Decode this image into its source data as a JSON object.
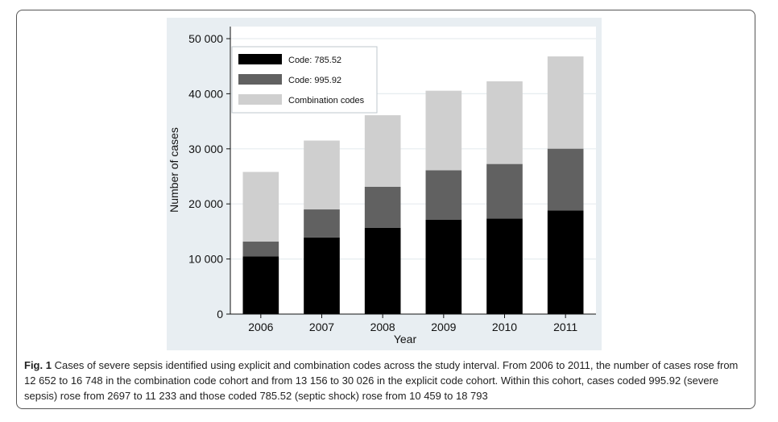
{
  "chart_data": {
    "type": "bar",
    "stacked": true,
    "title": "",
    "xlabel": "Year",
    "ylabel": "Number of cases",
    "ylim": [
      0,
      50000
    ],
    "yticks": [
      0,
      10000,
      20000,
      30000,
      40000,
      50000
    ],
    "ytick_labels": [
      "0",
      "10 000",
      "20 000",
      "30 000",
      "40 000",
      "50 000"
    ],
    "categories": [
      "2006",
      "2007",
      "2008",
      "2009",
      "2010",
      "2011"
    ],
    "grid": true,
    "legend_position": "top-left",
    "series": [
      {
        "name": "Code: 785.52",
        "color": "#000000",
        "values": [
          10459,
          13900,
          15650,
          17150,
          17350,
          18793
        ]
      },
      {
        "name": "Code: 995.92",
        "color": "#616161",
        "values": [
          2697,
          5100,
          7450,
          8950,
          9900,
          11233
        ]
      },
      {
        "name": "Combination codes",
        "color": "#cfcfcf",
        "values": [
          12652,
          12500,
          13000,
          14450,
          15000,
          16748
        ]
      }
    ]
  },
  "caption": {
    "label": "Fig. 1",
    "text": "Cases of severe sepsis identified using explicit and combination codes across the study interval. From 2006 to 2011, the number of cases rose from 12 652 to 16 748 in the combination code cohort and from 13 156 to 30 026 in the explicit code cohort. Within this cohort, cases coded 995.92 (severe sepsis) rose from 2697 to 11 233 and those coded 785.52 (septic shock) rose from 10 459 to 18 793"
  }
}
